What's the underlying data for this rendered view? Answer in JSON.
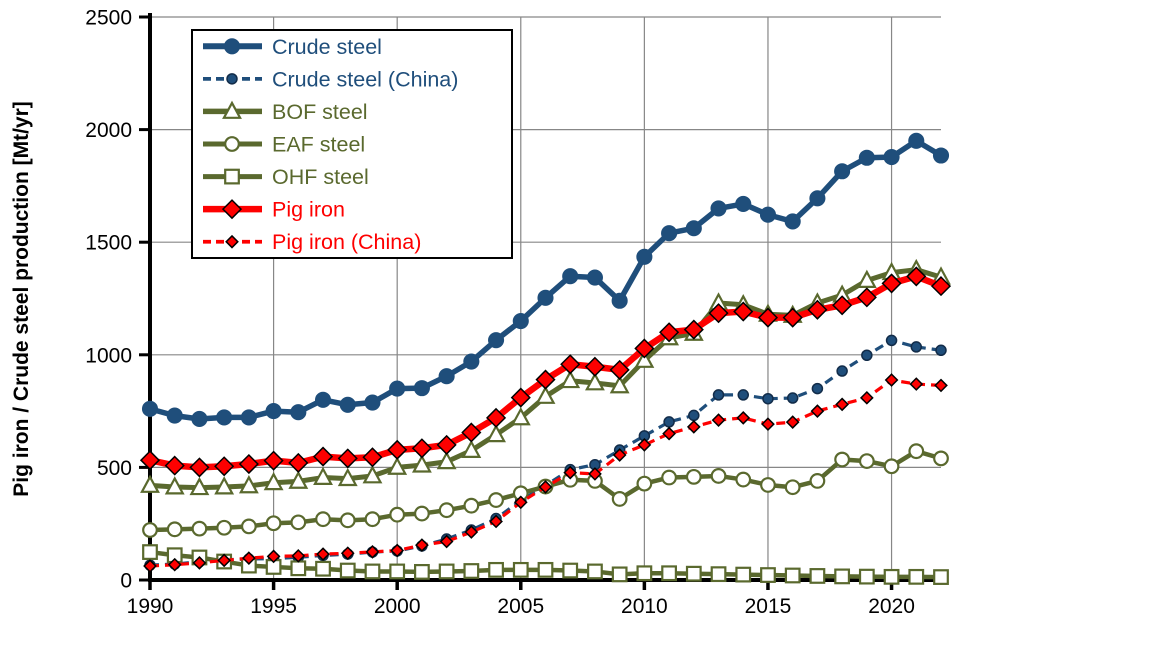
{
  "chart_data": {
    "type": "line",
    "title": "",
    "xlabel": "",
    "ylabel": "Pig iron / Crude steel production [Mt/yr]",
    "xlim": [
      1990,
      2022
    ],
    "ylim": [
      0,
      2500
    ],
    "x_ticks": [
      1990,
      1995,
      2000,
      2005,
      2010,
      2015,
      2020
    ],
    "y_ticks": [
      0,
      500,
      1000,
      1500,
      2000,
      2500
    ],
    "grid": true,
    "legend_position": "top-left",
    "x": [
      1990,
      1991,
      1992,
      1993,
      1994,
      1995,
      1996,
      1997,
      1998,
      1999,
      2000,
      2001,
      2002,
      2003,
      2004,
      2005,
      2006,
      2007,
      2008,
      2009,
      2010,
      2011,
      2012,
      2013,
      2014,
      2015,
      2016,
      2017,
      2018,
      2019,
      2020,
      2021,
      2022
    ],
    "series": [
      {
        "name": "Crude steel",
        "color": "#1f4e7b",
        "dash": false,
        "line_width": 5.5,
        "marker": "circle",
        "marker_size": 7.3,
        "marker_fill": "#1f4e7b",
        "marker_edge": "#1f4e7b",
        "values": [
          760,
          730,
          715,
          722,
          722,
          750,
          745,
          800,
          778,
          788,
          850,
          852,
          905,
          970,
          1065,
          1150,
          1253,
          1349,
          1343,
          1240,
          1435,
          1540,
          1562,
          1650,
          1670,
          1622,
          1592,
          1695,
          1815,
          1875,
          1878,
          1950,
          1885
        ]
      },
      {
        "name": "Crude steel (China)",
        "color": "#1f4e7b",
        "dash": true,
        "line_width": 3.2,
        "marker": "circle",
        "marker_size": 5,
        "marker_fill": "#1f4e7b",
        "marker_edge": "#122c49",
        "values": [
          66,
          71,
          81,
          90,
          93,
          95,
          101,
          109,
          115,
          124,
          129,
          151,
          182,
          222,
          273,
          353,
          420,
          490,
          512,
          577,
          640,
          702,
          731,
          822,
          822,
          805,
          808,
          850,
          928,
          998,
          1064,
          1035,
          1020
        ]
      },
      {
        "name": "BOF steel",
        "color": "#5a692e",
        "dash": false,
        "line_width": 5,
        "marker": "triangle",
        "marker_size": 8.5,
        "marker_fill": "#ffffff",
        "marker_edge": "#5a692e",
        "values": [
          420,
          413,
          410,
          413,
          418,
          432,
          438,
          455,
          450,
          462,
          500,
          510,
          525,
          575,
          645,
          720,
          815,
          885,
          875,
          862,
          975,
          1075,
          1095,
          1230,
          1222,
          1180,
          1175,
          1230,
          1265,
          1330,
          1365,
          1378,
          1345
        ]
      },
      {
        "name": "EAF steel",
        "color": "#5a692e",
        "dash": false,
        "line_width": 4.5,
        "marker": "circle",
        "marker_size": 6.8,
        "marker_fill": "#ffffff",
        "marker_edge": "#5a692e",
        "values": [
          222,
          225,
          228,
          232,
          238,
          252,
          256,
          270,
          265,
          270,
          290,
          295,
          310,
          330,
          355,
          385,
          415,
          445,
          440,
          360,
          428,
          455,
          458,
          462,
          446,
          422,
          412,
          440,
          535,
          528,
          505,
          572,
          540
        ]
      },
      {
        "name": "OHF steel",
        "color": "#5a692e",
        "dash": false,
        "line_width": 4.5,
        "marker": "square",
        "marker_size": 6.8,
        "marker_fill": "#ffffff",
        "marker_edge": "#5a692e",
        "values": [
          124,
          110,
          100,
          82,
          64,
          58,
          52,
          50,
          42,
          38,
          38,
          36,
          38,
          40,
          45,
          45,
          45,
          42,
          38,
          25,
          30,
          30,
          28,
          26,
          24,
          22,
          20,
          18,
          16,
          15,
          14,
          14,
          13
        ]
      },
      {
        "name": "Pig iron",
        "color": "#fe0000",
        "dash": false,
        "line_width": 6.5,
        "marker": "diamond",
        "marker_size": 9,
        "marker_fill": "#fe0000",
        "marker_edge": "#000000",
        "values": [
          532,
          508,
          500,
          505,
          515,
          530,
          520,
          548,
          540,
          545,
          578,
          585,
          600,
          655,
          720,
          810,
          890,
          958,
          947,
          933,
          1028,
          1100,
          1112,
          1185,
          1192,
          1165,
          1165,
          1200,
          1220,
          1255,
          1317,
          1348,
          1305
        ]
      },
      {
        "name": "Pig iron (China)",
        "color": "#fe0000",
        "dash": true,
        "line_width": 3.2,
        "marker": "diamond",
        "marker_size": 5.8,
        "marker_fill": "#fe0000",
        "marker_edge": "#000000",
        "values": [
          62,
          68,
          76,
          87,
          97,
          105,
          107,
          115,
          119,
          125,
          131,
          155,
          171,
          213,
          260,
          345,
          413,
          477,
          471,
          555,
          600,
          650,
          680,
          710,
          720,
          692,
          701,
          750,
          780,
          809,
          888,
          870,
          864
        ]
      }
    ]
  },
  "colors": {
    "grid": "#878787",
    "axis": "#000000",
    "tick_label": "#000000",
    "legend_border": "#000000",
    "legend_bg": "#ffffff"
  }
}
